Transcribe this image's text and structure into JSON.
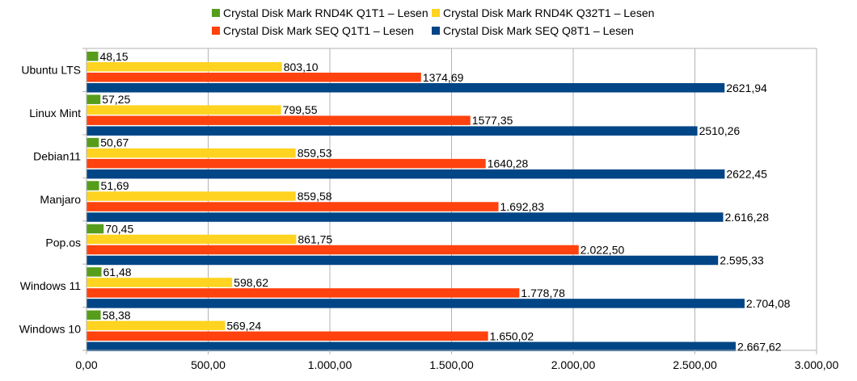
{
  "chart_data": {
    "type": "bar",
    "orientation": "horizontal",
    "title": "",
    "xlabel": "",
    "ylabel": "",
    "categories": [
      "Ubuntu LTS",
      "Linux Mint",
      "Debian11",
      "Manjaro",
      "Pop.os",
      "Windows 11",
      "Windows 10"
    ],
    "series": [
      {
        "name": "Crystal Disk Mark RND4K Q1T1 – Lesen",
        "color": "#579d1c",
        "values": [
          48.15,
          57.25,
          50.67,
          51.69,
          70.45,
          61.48,
          58.38
        ],
        "labels": [
          "48,15",
          "57,25",
          "50,67",
          "51,69",
          "70,45",
          "61,48",
          "58,38"
        ]
      },
      {
        "name": "Crystal Disk Mark RND4K Q32T1 – Lesen",
        "color": "#ffd320",
        "values": [
          803.1,
          799.55,
          859.53,
          859.58,
          861.75,
          598.62,
          569.24
        ],
        "labels": [
          "803,10",
          "799,55",
          "859,53",
          "859,58",
          "861,75",
          "598,62",
          "569,24"
        ]
      },
      {
        "name": "Crystal Disk Mark SEQ Q1T1 – Lesen",
        "color": "#ff420e",
        "values": [
          1374.69,
          1577.35,
          1640.28,
          1692.83,
          2022.5,
          1778.78,
          1650.02
        ],
        "labels": [
          "1374,69",
          "1577,35",
          "1640,28",
          "1.692,83",
          "2.022,50",
          "1.778,78",
          "1.650,02"
        ]
      },
      {
        "name": "Crystal Disk Mark SEQ Q8T1 – Lesen",
        "color": "#004586",
        "values": [
          2621.94,
          2510.26,
          2622.45,
          2616.28,
          2595.33,
          2704.08,
          2667.62
        ],
        "labels": [
          "2621,94",
          "2510,26",
          "2622,45",
          "2.616,28",
          "2.595,33",
          "2.704,08",
          "2.667,62"
        ]
      }
    ],
    "xlim": [
      0,
      3000
    ],
    "x_ticks": [
      0,
      500,
      1000,
      1500,
      2000,
      2500,
      3000
    ],
    "x_tick_labels": [
      "0,00",
      "500,00",
      "1.000,00",
      "1.500,00",
      "2.000,00",
      "2.500,00",
      "3.000,00"
    ],
    "grid": true,
    "legend_position": "top"
  }
}
